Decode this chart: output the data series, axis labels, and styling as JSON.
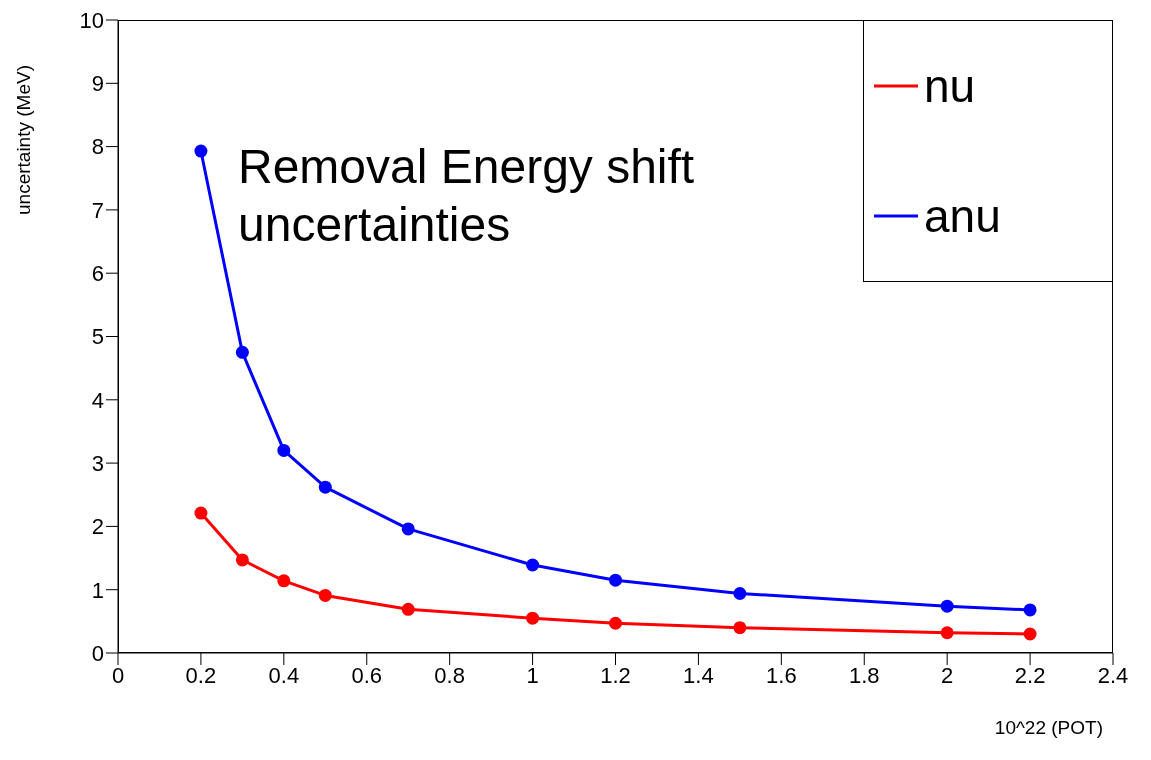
{
  "chart_data": {
    "type": "line",
    "xlabel": "10^22 (POT)",
    "ylabel": "uncertainty (MeV)",
    "annotations": [
      "Removal Energy shift uncertainties"
    ],
    "x": [
      0.2,
      0.3,
      0.4,
      0.5,
      0.7,
      1.0,
      1.2,
      1.5,
      2.0,
      2.2
    ],
    "series": [
      {
        "name": "nu",
        "color": "#ff0000",
        "values": [
          2.21,
          1.47,
          1.14,
          0.91,
          0.69,
          0.55,
          0.47,
          0.4,
          0.32,
          0.3
        ]
      },
      {
        "name": "anu",
        "color": "#0000ff",
        "values": [
          7.93,
          4.75,
          3.2,
          2.62,
          1.96,
          1.39,
          1.15,
          0.94,
          0.74,
          0.68
        ]
      }
    ],
    "xlim": [
      0,
      2.4
    ],
    "xticks": [
      0,
      0.2,
      0.4,
      0.6,
      0.8,
      1,
      1.2,
      1.4,
      1.6,
      1.8,
      2,
      2.2,
      2.4
    ],
    "ylim": [
      0,
      10
    ],
    "yticks": [
      0,
      1,
      2,
      3,
      4,
      5,
      6,
      7,
      8,
      9,
      10
    ],
    "grid": false,
    "legend": "top right",
    "marker": "circle",
    "line_style": "solid"
  }
}
